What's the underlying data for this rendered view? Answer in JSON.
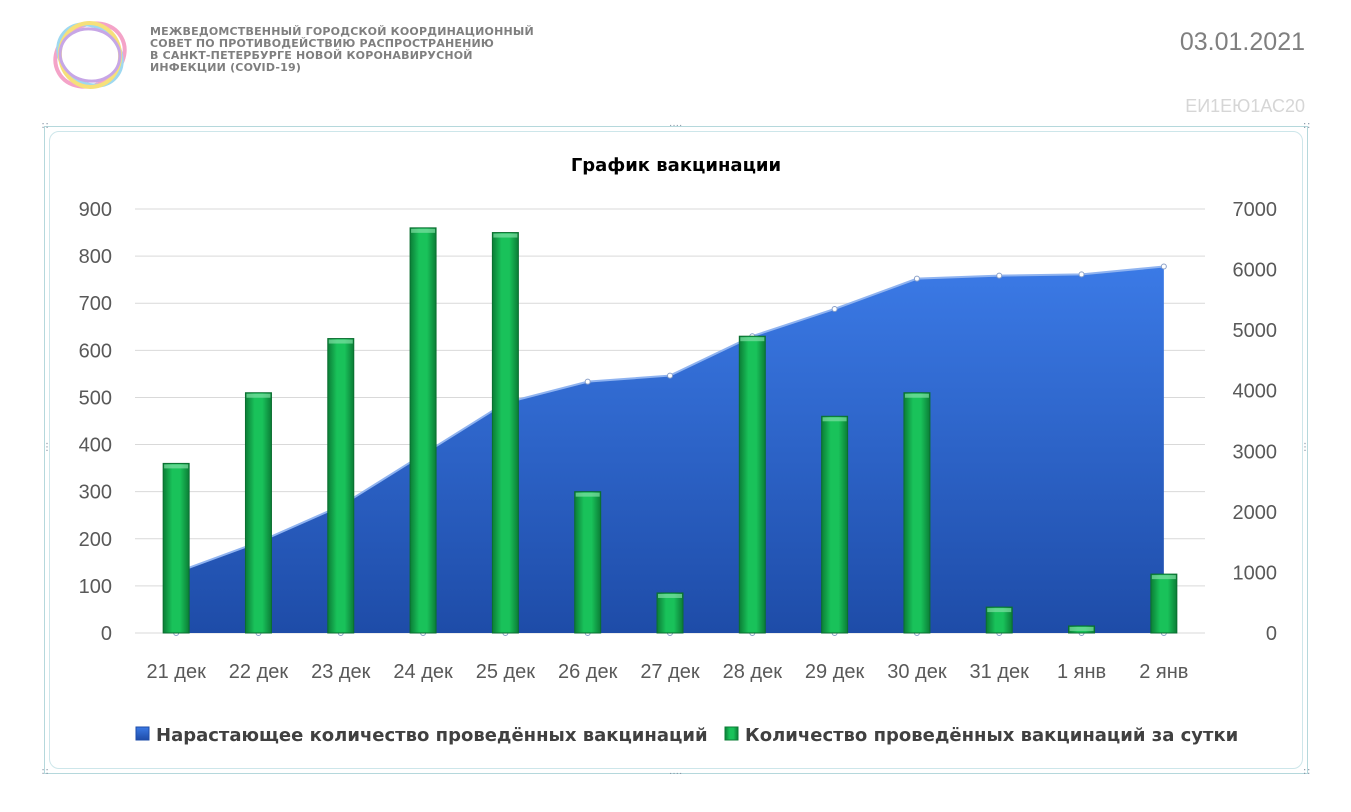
{
  "header": {
    "org_lines": [
      "МЕЖВЕДОМСТВЕННЫЙ ГОРОДСКОЙ КООРДИНАЦИОННЫЙ",
      "СОВЕТ ПО ПРОТИВОДЕЙСТВИЮ РАСПРОСТРАНЕНИЮ",
      "В САНКТ-ПЕТЕРБУРГЕ НОВОЙ КОРОНАВИРУСНОЙ",
      "ИНФЕКЦИИ (COVID-19)"
    ],
    "date": "03.01.2021",
    "code": "ЕИ1ЕЮ1АС20"
  },
  "colors": {
    "area": "#3470d6",
    "bar": "#10a84a",
    "grid": "#d9d9d9",
    "text": "#595959"
  },
  "chart_data": {
    "type": "bar",
    "title": "График вакцинации",
    "categories": [
      "21 дек",
      "22 дек",
      "23 дек",
      "24 дек",
      "25 дек",
      "26 дек",
      "27 дек",
      "28 дек",
      "29 дек",
      "30 дек",
      "31 дек",
      "1 янв",
      "2 янв"
    ],
    "y_left": {
      "min": 0,
      "max": 900,
      "ticks": [
        0,
        100,
        200,
        300,
        400,
        500,
        600,
        700,
        800,
        900
      ]
    },
    "y_right": {
      "min": 0,
      "max": 7000,
      "ticks": [
        0,
        1000,
        2000,
        3000,
        4000,
        5000,
        6000,
        7000
      ]
    },
    "grid": true,
    "legend_position": "bottom",
    "series": [
      {
        "name": "Нарастающее количество проведённых вакцинаций",
        "type": "area",
        "axis": "right",
        "values": [
          1000,
          1500,
          2100,
          2950,
          3800,
          4150,
          4250,
          4900,
          5350,
          5850,
          5900,
          5920,
          6050
        ]
      },
      {
        "name": "Количество проведённых вакцинаций за сутки",
        "type": "bar",
        "axis": "left",
        "values": [
          360,
          510,
          625,
          860,
          850,
          300,
          85,
          630,
          460,
          510,
          55,
          15,
          125
        ]
      }
    ]
  }
}
